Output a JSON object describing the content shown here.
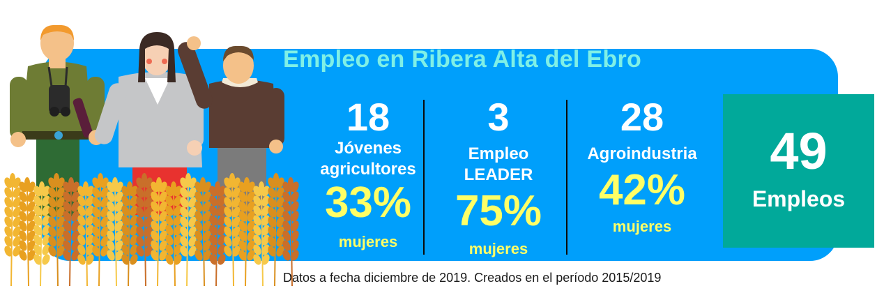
{
  "title": "Empleo en Ribera Alta del Ebro",
  "stats": [
    {
      "number": "18",
      "label_line1": "Jóvenes",
      "label_line2": "agricultores",
      "percent": "33%",
      "percent_label": "mujeres"
    },
    {
      "number": "3",
      "label_line1": "Empleo",
      "label_line2": "LEADER",
      "percent": "75%",
      "percent_label": "mujeres"
    },
    {
      "number": "28",
      "label_line1": "Agroindustria",
      "percent": "42%",
      "percent_label": "mujeres"
    }
  ],
  "total": {
    "number": "49",
    "label": "Empleos"
  },
  "footnote": "Datos a fecha diciembre de 2019. Creados en el período 2015/2019",
  "colors": {
    "banner": "#009ffb",
    "title": "#7ff0e6",
    "highlight": "#ffff66",
    "total_box": "#01a99a"
  },
  "illustration": "three-farmers-in-wheat-field"
}
